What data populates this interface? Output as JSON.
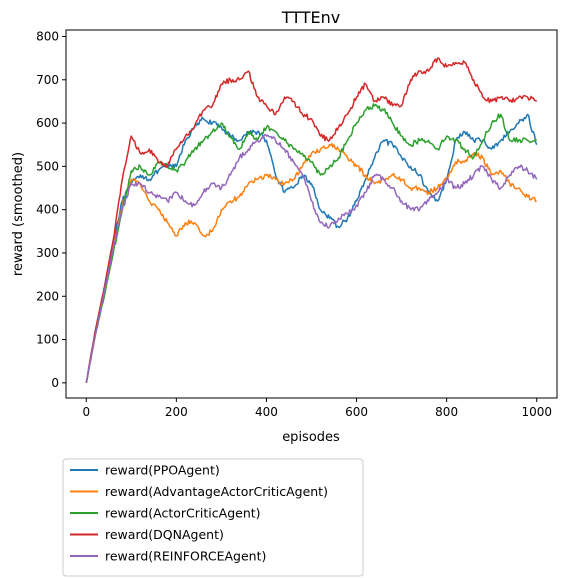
{
  "chart_data": {
    "type": "line",
    "title": "TTTEnv",
    "xlabel": "episodes",
    "ylabel": "reward (smoothed)",
    "xlim": [
      -45,
      1045
    ],
    "ylim": [
      -35,
      815
    ],
    "x_ticks": [
      0,
      200,
      400,
      600,
      800,
      1000
    ],
    "y_ticks": [
      0,
      100,
      200,
      300,
      400,
      500,
      600,
      700,
      800
    ],
    "grid": false,
    "legend_placement": "below",
    "series": [
      {
        "name": "reward(PPOAgent)",
        "color": "#1f77b4",
        "x": [
          0,
          20,
          40,
          60,
          80,
          100,
          120,
          140,
          160,
          180,
          200,
          220,
          240,
          260,
          280,
          300,
          320,
          340,
          360,
          380,
          400,
          420,
          440,
          460,
          480,
          500,
          520,
          540,
          560,
          580,
          600,
          620,
          640,
          660,
          680,
          700,
          720,
          740,
          760,
          780,
          800,
          820,
          840,
          860,
          880,
          900,
          920,
          940,
          960,
          980,
          1000
        ],
        "values": [
          0,
          120,
          220,
          330,
          420,
          460,
          480,
          470,
          490,
          500,
          500,
          560,
          590,
          610,
          600,
          590,
          570,
          560,
          580,
          580,
          560,
          480,
          440,
          450,
          480,
          460,
          400,
          380,
          360,
          380,
          420,
          470,
          520,
          560,
          550,
          520,
          500,
          480,
          440,
          420,
          470,
          560,
          580,
          560,
          560,
          540,
          560,
          580,
          600,
          620,
          550
        ]
      },
      {
        "name": "reward(AdvantageActorCriticAgent)",
        "color": "#ff7f0e",
        "x": [
          0,
          20,
          40,
          60,
          80,
          100,
          120,
          140,
          160,
          180,
          200,
          220,
          240,
          260,
          280,
          300,
          320,
          340,
          360,
          380,
          400,
          420,
          440,
          460,
          480,
          500,
          520,
          540,
          560,
          580,
          600,
          620,
          640,
          660,
          680,
          700,
          720,
          740,
          760,
          780,
          800,
          820,
          840,
          860,
          880,
          900,
          920,
          940,
          960,
          980,
          1000
        ],
        "values": [
          0,
          110,
          210,
          310,
          410,
          470,
          460,
          420,
          400,
          370,
          340,
          370,
          370,
          340,
          350,
          400,
          420,
          430,
          460,
          470,
          480,
          470,
          460,
          470,
          500,
          530,
          540,
          550,
          540,
          520,
          500,
          480,
          460,
          470,
          480,
          470,
          450,
          450,
          440,
          450,
          470,
          510,
          510,
          530,
          520,
          480,
          490,
          460,
          450,
          430,
          420
        ]
      },
      {
        "name": "reward(ActorCriticAgent)",
        "color": "#2ca02c",
        "x": [
          0,
          20,
          40,
          60,
          80,
          100,
          120,
          140,
          160,
          180,
          200,
          220,
          240,
          260,
          280,
          300,
          320,
          340,
          360,
          380,
          400,
          420,
          440,
          460,
          480,
          500,
          520,
          540,
          560,
          580,
          600,
          620,
          640,
          660,
          680,
          700,
          720,
          740,
          760,
          780,
          800,
          820,
          840,
          860,
          880,
          900,
          920,
          940,
          960,
          980,
          1000
        ],
        "values": [
          0,
          110,
          200,
          300,
          400,
          490,
          500,
          480,
          510,
          500,
          490,
          510,
          540,
          560,
          580,
          600,
          570,
          540,
          580,
          560,
          590,
          580,
          560,
          540,
          530,
          510,
          480,
          500,
          520,
          560,
          600,
          630,
          640,
          630,
          600,
          570,
          550,
          560,
          560,
          540,
          570,
          560,
          540,
          520,
          560,
          600,
          620,
          560,
          560,
          560,
          560
        ]
      },
      {
        "name": "reward(DQNAgent)",
        "color": "#d62728",
        "x": [
          0,
          20,
          40,
          60,
          80,
          100,
          120,
          140,
          160,
          180,
          200,
          220,
          240,
          260,
          280,
          300,
          320,
          340,
          360,
          380,
          400,
          420,
          440,
          460,
          480,
          500,
          520,
          540,
          560,
          580,
          600,
          620,
          640,
          660,
          680,
          700,
          720,
          740,
          760,
          780,
          800,
          820,
          840,
          860,
          880,
          900,
          920,
          940,
          960,
          980,
          1000
        ],
        "values": [
          0,
          120,
          220,
          330,
          470,
          570,
          530,
          540,
          510,
          500,
          540,
          570,
          590,
          630,
          640,
          690,
          700,
          700,
          720,
          660,
          640,
          620,
          660,
          650,
          620,
          610,
          570,
          560,
          590,
          620,
          660,
          690,
          650,
          660,
          640,
          640,
          700,
          720,
          720,
          750,
          730,
          740,
          740,
          700,
          660,
          650,
          660,
          650,
          660,
          660,
          650
        ]
      },
      {
        "name": "reward(REINFORCEAgent)",
        "color": "#9467bd",
        "x": [
          0,
          20,
          40,
          60,
          80,
          100,
          120,
          140,
          160,
          180,
          200,
          220,
          240,
          260,
          280,
          300,
          320,
          340,
          360,
          380,
          400,
          420,
          440,
          460,
          480,
          500,
          520,
          540,
          560,
          580,
          600,
          620,
          640,
          660,
          680,
          700,
          720,
          740,
          760,
          780,
          800,
          820,
          840,
          860,
          880,
          900,
          920,
          940,
          960,
          980,
          1000
        ],
        "values": [
          0,
          110,
          210,
          310,
          400,
          460,
          460,
          440,
          430,
          420,
          440,
          420,
          410,
          440,
          460,
          450,
          480,
          520,
          540,
          560,
          570,
          560,
          540,
          510,
          480,
          420,
          370,
          360,
          380,
          390,
          410,
          440,
          480,
          470,
          450,
          420,
          400,
          400,
          420,
          440,
          470,
          450,
          460,
          480,
          500,
          470,
          450,
          480,
          500,
          490,
          470
        ]
      }
    ]
  }
}
